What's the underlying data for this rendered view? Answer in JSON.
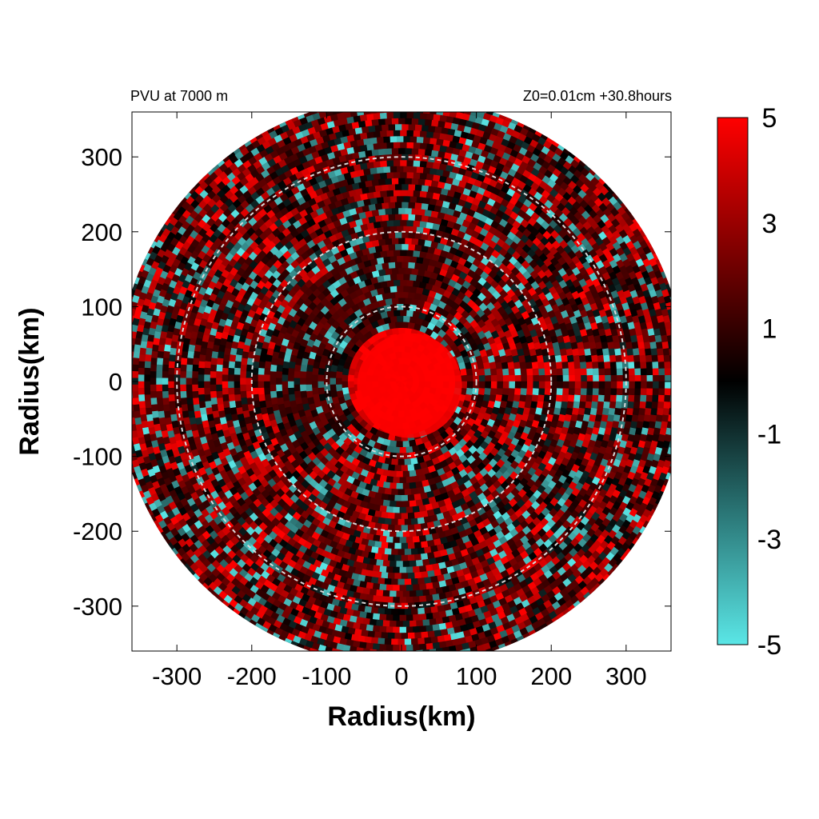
{
  "chart_data": {
    "type": "heatmap",
    "subtype": "polar field",
    "title_left": "PVU at  7000 m",
    "title_right": "Z0=0.01cm  +30.8hours",
    "xlabel": "Radius(km)",
    "ylabel": "Radius(km)",
    "xlim": [
      -360,
      360
    ],
    "ylim": [
      -360,
      360
    ],
    "x_ticks": [
      "-300",
      "-200",
      "-100",
      "0",
      "100",
      "200",
      "300"
    ],
    "x_tick_values": [
      -300,
      -200,
      -100,
      0,
      100,
      200,
      300
    ],
    "y_ticks": [
      "300",
      "200",
      "100",
      "0",
      "-100",
      "-200",
      "-300"
    ],
    "y_tick_values": [
      300,
      200,
      100,
      0,
      -100,
      -200,
      -300
    ],
    "domain_radius_km": 380,
    "reference_circles_km": [
      100,
      200,
      300
    ],
    "reference_circle_style": "dashed white",
    "colorbar": {
      "range": [
        -5,
        5
      ],
      "ticks": [
        "5",
        "3",
        "1",
        "-1",
        "-3",
        "-5"
      ],
      "tick_values": [
        5,
        3,
        1,
        -1,
        -3,
        -5
      ],
      "colors": [
        "#5ae6e6",
        "#000000",
        "#ff0000"
      ]
    },
    "field_description_values": {
      "inner_core_radius_km": 70,
      "inner_core_value": 5,
      "background_value_range": [
        -5,
        5
      ]
    }
  }
}
